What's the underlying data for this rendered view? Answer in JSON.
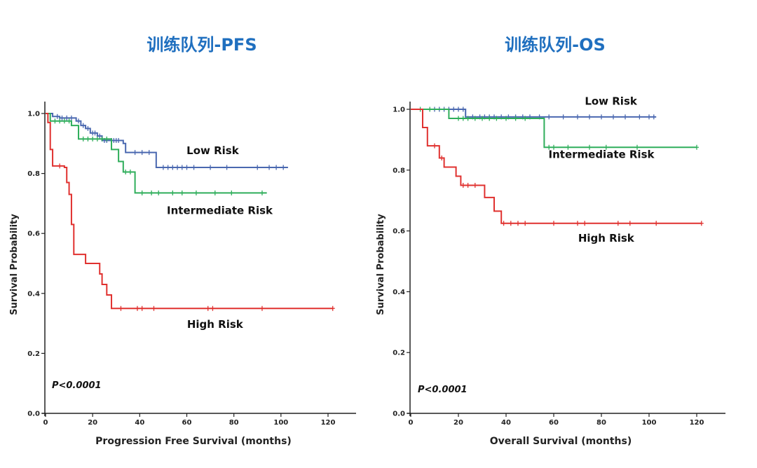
{
  "chart_data": [
    {
      "type": "line",
      "title": "训练队列-PFS",
      "xlabel": "Progression Free Survival (months)",
      "ylabel": "Survival Probability",
      "xlim": [
        0,
        125
      ],
      "ylim": [
        0,
        1.0
      ],
      "xticks": [
        0,
        20,
        40,
        60,
        80,
        100,
        120
      ],
      "xtick_labels": [
        "0",
        "20",
        "40",
        "60",
        "80",
        "100",
        "120"
      ],
      "yticks": [
        0,
        0.2,
        0.4,
        0.6,
        0.8,
        1.0
      ],
      "ytick_labels": [
        "0.0",
        "0.2",
        "0.4",
        "0.6",
        "0.8",
        "1.0"
      ],
      "p_value": "P<0.0001",
      "series": [
        {
          "name": "Low Risk",
          "color": "#4a68b0",
          "steps": [
            [
              0,
              1.0
            ],
            [
              3,
              0.99
            ],
            [
              6,
              0.985
            ],
            [
              13,
              0.975
            ],
            [
              15,
              0.96
            ],
            [
              17,
              0.95
            ],
            [
              19,
              0.935
            ],
            [
              22,
              0.925
            ],
            [
              24,
              0.91
            ],
            [
              33,
              0.9
            ],
            [
              34,
              0.87
            ],
            [
              47,
              0.82
            ],
            [
              103,
              0.82
            ]
          ],
          "censored": [
            [
              5,
              0.99
            ],
            [
              7,
              0.985
            ],
            [
              9,
              0.985
            ],
            [
              11,
              0.985
            ],
            [
              14,
              0.975
            ],
            [
              16,
              0.96
            ],
            [
              18,
              0.95
            ],
            [
              20,
              0.935
            ],
            [
              21,
              0.935
            ],
            [
              23,
              0.925
            ],
            [
              25,
              0.91
            ],
            [
              26,
              0.91
            ],
            [
              28,
              0.91
            ],
            [
              29,
              0.91
            ],
            [
              30,
              0.91
            ],
            [
              31,
              0.91
            ],
            [
              38,
              0.87
            ],
            [
              41,
              0.87
            ],
            [
              44,
              0.87
            ],
            [
              50,
              0.82
            ],
            [
              52,
              0.82
            ],
            [
              54,
              0.82
            ],
            [
              56,
              0.82
            ],
            [
              58,
              0.82
            ],
            [
              60,
              0.82
            ],
            [
              63,
              0.82
            ],
            [
              70,
              0.82
            ],
            [
              77,
              0.82
            ],
            [
              90,
              0.82
            ],
            [
              95,
              0.82
            ],
            [
              98,
              0.82
            ],
            [
              101,
              0.82
            ]
          ],
          "label_at": [
            71,
            0.865
          ]
        },
        {
          "name": "Intermediate Risk",
          "color": "#2fae5b",
          "steps": [
            [
              0,
              1.0
            ],
            [
              2,
              0.975
            ],
            [
              11,
              0.96
            ],
            [
              14,
              0.915
            ],
            [
              28,
              0.88
            ],
            [
              31,
              0.84
            ],
            [
              33,
              0.805
            ],
            [
              38,
              0.735
            ],
            [
              94,
              0.735
            ]
          ],
          "censored": [
            [
              4,
              0.975
            ],
            [
              6,
              0.975
            ],
            [
              8,
              0.975
            ],
            [
              10,
              0.975
            ],
            [
              16,
              0.915
            ],
            [
              18,
              0.915
            ],
            [
              20,
              0.915
            ],
            [
              22,
              0.915
            ],
            [
              24,
              0.915
            ],
            [
              26,
              0.915
            ],
            [
              34,
              0.805
            ],
            [
              36,
              0.805
            ],
            [
              41,
              0.735
            ],
            [
              45,
              0.735
            ],
            [
              48,
              0.735
            ],
            [
              54,
              0.735
            ],
            [
              58,
              0.735
            ],
            [
              64,
              0.735
            ],
            [
              72,
              0.735
            ],
            [
              79,
              0.735
            ],
            [
              92,
              0.735
            ]
          ],
          "label_at": [
            74,
            0.665
          ]
        },
        {
          "name": "High Risk",
          "color": "#e0312f",
          "steps": [
            [
              0,
              1.0
            ],
            [
              1,
              0.97
            ],
            [
              2,
              0.88
            ],
            [
              3,
              0.825
            ],
            [
              8,
              0.82
            ],
            [
              9,
              0.77
            ],
            [
              10,
              0.73
            ],
            [
              11,
              0.63
            ],
            [
              12,
              0.53
            ],
            [
              17,
              0.5
            ],
            [
              23,
              0.465
            ],
            [
              24,
              0.43
            ],
            [
              26,
              0.395
            ],
            [
              28,
              0.35
            ],
            [
              122,
              0.35
            ]
          ],
          "censored": [
            [
              6,
              0.825
            ],
            [
              32,
              0.35
            ],
            [
              39,
              0.35
            ],
            [
              41,
              0.35
            ],
            [
              46,
              0.35
            ],
            [
              69,
              0.35
            ],
            [
              71,
              0.35
            ],
            [
              92,
              0.35
            ],
            [
              122,
              0.35
            ]
          ],
          "label_at": [
            72,
            0.285
          ]
        }
      ]
    },
    {
      "type": "line",
      "title": "训练队列-OS",
      "xlabel": "Overall Survival (months)",
      "ylabel": "Survival Probability",
      "xlim": [
        0,
        125
      ],
      "ylim": [
        0,
        1.0
      ],
      "xticks": [
        0,
        20,
        40,
        60,
        80,
        100,
        120
      ],
      "xtick_labels": [
        "0",
        "20",
        "40",
        "60",
        "80",
        "100",
        "120"
      ],
      "yticks": [
        0,
        0.2,
        0.4,
        0.6,
        0.8,
        1.0
      ],
      "ytick_labels": [
        "0.0",
        "0.2",
        "0.4",
        "0.6",
        "0.8",
        "1.0"
      ],
      "p_value": "P<0.0001",
      "series": [
        {
          "name": "Low Risk",
          "color": "#4a68b0",
          "steps": [
            [
              0,
              1.0
            ],
            [
              23,
              0.975
            ],
            [
              103,
              0.975
            ]
          ],
          "censored": [
            [
              10,
              1.0
            ],
            [
              12,
              1.0
            ],
            [
              14,
              1.0
            ],
            [
              16,
              1.0
            ],
            [
              18,
              1.0
            ],
            [
              20,
              1.0
            ],
            [
              22,
              1.0
            ],
            [
              26,
              0.975
            ],
            [
              29,
              0.975
            ],
            [
              31,
              0.975
            ],
            [
              33,
              0.975
            ],
            [
              35,
              0.975
            ],
            [
              38,
              0.975
            ],
            [
              41,
              0.975
            ],
            [
              44,
              0.975
            ],
            [
              47,
              0.975
            ],
            [
              50,
              0.975
            ],
            [
              54,
              0.975
            ],
            [
              58,
              0.975
            ],
            [
              64,
              0.975
            ],
            [
              70,
              0.975
            ],
            [
              75,
              0.975
            ],
            [
              80,
              0.975
            ],
            [
              85,
              0.975
            ],
            [
              90,
              0.975
            ],
            [
              96,
              0.975
            ],
            [
              100,
              0.975
            ],
            [
              102,
              0.975
            ]
          ],
          "label_at": [
            84,
            1.015
          ]
        },
        {
          "name": "Intermediate Risk",
          "color": "#2fae5b",
          "steps": [
            [
              0,
              1.0
            ],
            [
              16,
              0.97
            ],
            [
              56,
              0.875
            ],
            [
              120,
              0.875
            ]
          ],
          "censored": [
            [
              4,
              1.0
            ],
            [
              8,
              1.0
            ],
            [
              20,
              0.97
            ],
            [
              22,
              0.97
            ],
            [
              24,
              0.97
            ],
            [
              27,
              0.97
            ],
            [
              30,
              0.97
            ],
            [
              33,
              0.97
            ],
            [
              36,
              0.97
            ],
            [
              40,
              0.97
            ],
            [
              44,
              0.97
            ],
            [
              48,
              0.97
            ],
            [
              58,
              0.875
            ],
            [
              60,
              0.875
            ],
            [
              66,
              0.875
            ],
            [
              75,
              0.875
            ],
            [
              82,
              0.875
            ],
            [
              95,
              0.875
            ],
            [
              120,
              0.875
            ]
          ],
          "label_at": [
            80,
            0.84
          ]
        },
        {
          "name": "High Risk",
          "color": "#e0312f",
          "steps": [
            [
              0,
              1.0
            ],
            [
              5,
              0.94
            ],
            [
              7,
              0.88
            ],
            [
              12,
              0.84
            ],
            [
              14,
              0.81
            ],
            [
              19,
              0.78
            ],
            [
              21,
              0.75
            ],
            [
              31,
              0.71
            ],
            [
              35,
              0.665
            ],
            [
              38,
              0.625
            ],
            [
              122,
              0.625
            ]
          ],
          "censored": [
            [
              10,
              0.88
            ],
            [
              13,
              0.84
            ],
            [
              22,
              0.75
            ],
            [
              24,
              0.75
            ],
            [
              27,
              0.75
            ],
            [
              39,
              0.625
            ],
            [
              42,
              0.625
            ],
            [
              45,
              0.625
            ],
            [
              48,
              0.625
            ],
            [
              60,
              0.625
            ],
            [
              70,
              0.625
            ],
            [
              73,
              0.625
            ],
            [
              87,
              0.625
            ],
            [
              92,
              0.625
            ],
            [
              103,
              0.625
            ],
            [
              122,
              0.625
            ]
          ],
          "label_at": [
            82,
            0.565
          ]
        }
      ]
    }
  ]
}
